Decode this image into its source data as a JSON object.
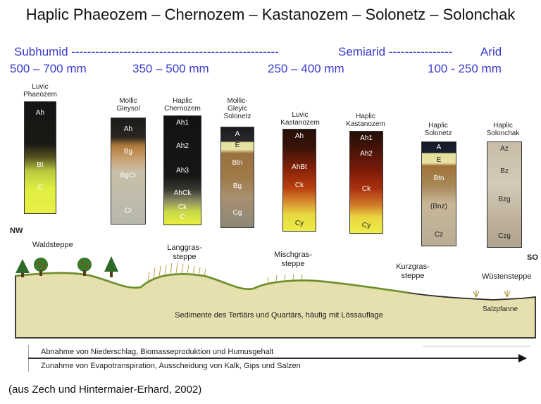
{
  "title": "Haplic Phaeozem – Chernozem – Kastanozem – Solonetz – Solonchak",
  "climate": {
    "subhumid": "Subhumid ----------------------------------------------------",
    "semiarid": "Semiarid  ----------------",
    "arid": "Arid",
    "precip": [
      "500 – 700 mm",
      "350 – 500 mm",
      "250 – 400 mm",
      "100 - 250 mm"
    ]
  },
  "profiles": [
    {
      "name": "Luvic\nPhaeozem",
      "horizons": [
        "Ah",
        "Bt",
        "C"
      ]
    },
    {
      "name": "Mollic\nGleysol",
      "horizons": [
        "Ah",
        "Bg",
        "BgCr",
        "Cr"
      ]
    },
    {
      "name": "Haplic\nChernozem",
      "horizons": [
        "Ah1",
        "Ah2",
        "Ah3",
        "AhCk",
        "Ck",
        "C"
      ]
    },
    {
      "name": "Mollic-\nGleyic\nSolonetz",
      "horizons": [
        "A",
        "E",
        "Btn",
        "Bg",
        "Cg"
      ]
    },
    {
      "name": "Luvic\nKastanozem",
      "horizons": [
        "Ah",
        "AhBt",
        "Ck",
        "Cy"
      ]
    },
    {
      "name": "Haplic\nKastanozem",
      "horizons": [
        "Ah1",
        "Ah2",
        "Ck",
        "Cy"
      ]
    },
    {
      "name": "Haplic\nSolonetz",
      "horizons": [
        "A",
        "E",
        "Btn",
        "(Bnz)",
        "Cz"
      ]
    },
    {
      "name": "Haplic\nSolonchak",
      "horizons": [
        "Az",
        "Bz",
        "Bzg",
        "Czg"
      ]
    }
  ],
  "landscape": {
    "nw": "NW",
    "so": "SO",
    "waldsteppe": "Waldsteppe",
    "langgras": "Langgras-\nsteppe",
    "mischgras": "Mischgras-\nsteppe",
    "kurzgras": "Kurzgras-\nsteppe",
    "wuesten": "Wüstensteppe",
    "salzpfanne": "Salzpfanne",
    "sedimente": "Sedimente des Tertiärs und Quartärs, häufig mit Lössauflage"
  },
  "arrow": {
    "line1": "Abnahme von Niederschlag, Biomasseproduktion und Humusgehalt",
    "line2": "Zunahme von Evapotranspiration, Ausscheidung von Kalk, Gips und Salzen"
  },
  "credit": "(aus Zech und Hintermaier-Erhard, 2002)"
}
